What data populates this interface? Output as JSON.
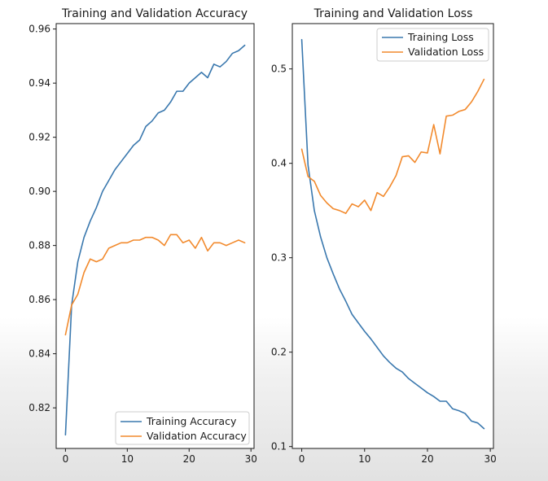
{
  "colors": {
    "training": "#3a78ae",
    "validation": "#f28a2d",
    "axes": "#1a1a1a"
  },
  "chart_data": [
    {
      "type": "line",
      "title": "Training and Validation Accuracy",
      "xlabel": "",
      "ylabel": "",
      "xlim": [
        -1.5,
        30.5
      ],
      "ylim": [
        0.805,
        0.962
      ],
      "xticks": [
        0,
        10,
        20,
        30
      ],
      "yticks": [
        0.82,
        0.84,
        0.86,
        0.88,
        0.9,
        0.92,
        0.94,
        0.96
      ],
      "ytick_labels": [
        "0.82",
        "0.84",
        "0.86",
        "0.88",
        "0.90",
        "0.92",
        "0.94",
        "0.96"
      ],
      "grid": false,
      "legend_position": "lower-right",
      "x": [
        0,
        1,
        2,
        3,
        4,
        5,
        6,
        7,
        8,
        9,
        10,
        11,
        12,
        13,
        14,
        15,
        16,
        17,
        18,
        19,
        20,
        21,
        22,
        23,
        24,
        25,
        26,
        27,
        28,
        29
      ],
      "series": [
        {
          "name": "Training Accuracy",
          "color_key": "training",
          "values": [
            0.81,
            0.858,
            0.874,
            0.883,
            0.889,
            0.894,
            0.9,
            0.904,
            0.908,
            0.911,
            0.914,
            0.917,
            0.919,
            0.924,
            0.926,
            0.929,
            0.93,
            0.933,
            0.937,
            0.937,
            0.94,
            0.942,
            0.944,
            0.942,
            0.947,
            0.946,
            0.948,
            0.951,
            0.952,
            0.954
          ]
        },
        {
          "name": "Validation Accuracy",
          "color_key": "validation",
          "values": [
            0.847,
            0.858,
            0.862,
            0.87,
            0.875,
            0.874,
            0.875,
            0.879,
            0.88,
            0.881,
            0.881,
            0.882,
            0.882,
            0.883,
            0.883,
            0.882,
            0.88,
            0.884,
            0.884,
            0.881,
            0.882,
            0.879,
            0.883,
            0.878,
            0.881,
            0.881,
            0.88,
            0.881,
            0.882,
            0.881
          ]
        }
      ]
    },
    {
      "type": "line",
      "title": "Training and Validation Loss",
      "xlabel": "",
      "ylabel": "",
      "xlim": [
        -1.5,
        30.5
      ],
      "ylim": [
        0.098,
        0.548
      ],
      "xticks": [
        0,
        10,
        20,
        30
      ],
      "yticks": [
        0.1,
        0.2,
        0.3,
        0.4,
        0.5
      ],
      "ytick_labels": [
        "0.1",
        "0.2",
        "0.3",
        "0.4",
        "0.5"
      ],
      "grid": false,
      "legend_position": "upper-right",
      "x": [
        0,
        1,
        2,
        3,
        4,
        5,
        6,
        7,
        8,
        9,
        10,
        11,
        12,
        13,
        14,
        15,
        16,
        17,
        18,
        19,
        20,
        21,
        22,
        23,
        24,
        25,
        26,
        27,
        28,
        29
      ],
      "series": [
        {
          "name": "Training Loss",
          "color_key": "training",
          "values": [
            0.531,
            0.398,
            0.35,
            0.322,
            0.3,
            0.283,
            0.267,
            0.254,
            0.24,
            0.231,
            0.222,
            0.214,
            0.205,
            0.196,
            0.189,
            0.183,
            0.179,
            0.172,
            0.167,
            0.162,
            0.157,
            0.153,
            0.148,
            0.148,
            0.14,
            0.138,
            0.135,
            0.127,
            0.125,
            0.119
          ]
        },
        {
          "name": "Validation Loss",
          "color_key": "validation",
          "values": [
            0.415,
            0.386,
            0.381,
            0.366,
            0.358,
            0.352,
            0.35,
            0.347,
            0.357,
            0.354,
            0.361,
            0.35,
            0.369,
            0.365,
            0.375,
            0.387,
            0.407,
            0.408,
            0.401,
            0.412,
            0.411,
            0.441,
            0.41,
            0.45,
            0.451,
            0.455,
            0.457,
            0.465,
            0.476,
            0.489
          ]
        }
      ]
    }
  ]
}
